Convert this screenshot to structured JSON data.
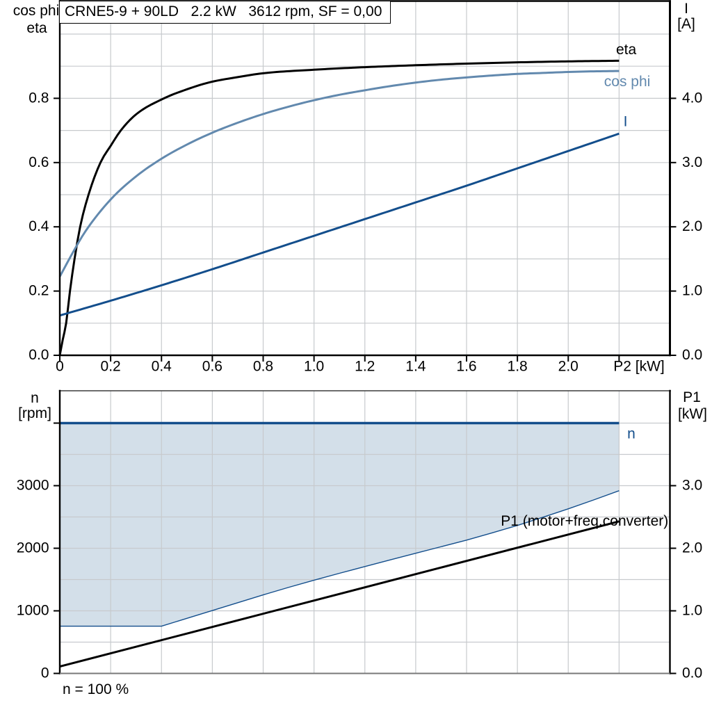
{
  "title_box": {
    "text": "CRNE5-9 + 90LD   2.2 kW   3612 rpm, SF = 0,00"
  },
  "colors": {
    "black": "#000000",
    "navy": "#134E8C",
    "steel": "#6289AE",
    "fill_blue": "#D3DFE9",
    "grid": "#C7CACD",
    "axis_black": "#000000",
    "axis_gray_top": "#3C3C3C",
    "axis_gray_bottom": "#787878",
    "background": "#FFFFFF"
  },
  "chart_data": [
    {
      "type": "line",
      "title": "CRNE5-9 + 90LD   2.2 kW   3612 rpm, SF = 0,00",
      "x_axis": {
        "label": "P2 [kW]",
        "min": 0,
        "max": 2.4,
        "grid": [
          0.2,
          0.4,
          0.6,
          0.8,
          1.0,
          1.2,
          1.4,
          1.6,
          1.8,
          2.0,
          2.2
        ],
        "ticks": [
          0,
          0.2,
          0.4,
          0.6,
          0.8,
          1.0,
          1.2,
          1.4,
          1.6,
          1.8,
          2.0,
          2.2
        ],
        "tick_labels": [
          "0",
          "0.2",
          "0.4",
          "0.6",
          "0.8",
          "1.0",
          "1.2",
          "1.4",
          "1.6",
          "1.8",
          "2.0",
          ""
        ]
      },
      "y_left_axis": {
        "label_lines": [
          "cos phi",
          "eta"
        ],
        "min": 0,
        "max": 1.1,
        "grid": [
          0.1,
          0.2,
          0.3,
          0.4,
          0.5,
          0.6,
          0.7,
          0.8,
          0.9,
          1.0
        ],
        "ticks": [
          0,
          0.2,
          0.4,
          0.6,
          0.8
        ],
        "tick_labels": [
          "0.0",
          "0.2",
          "0.4",
          "0.6",
          "0.8"
        ]
      },
      "y_right_axis": {
        "label_lines": [
          "I",
          "[A]"
        ],
        "min": 0,
        "max": 5.5,
        "ticks": [
          0,
          1,
          2,
          3,
          4
        ],
        "tick_labels": [
          "0.0",
          "1.0",
          "2.0",
          "3.0",
          "4.0"
        ]
      },
      "series": [
        {
          "name": "eta",
          "axis": "left",
          "color": "black",
          "width": 3,
          "curve": "smooth",
          "label": {
            "text": "eta",
            "color": "black",
            "anchor": "middle",
            "at": [
              2.228,
              0.9375
            ]
          },
          "points": [
            [
              0,
              0
            ],
            [
              0.012,
              0.05
            ],
            [
              0.025,
              0.1
            ],
            [
              0.04,
              0.2
            ],
            [
              0.058,
              0.3
            ],
            [
              0.08,
              0.4
            ],
            [
              0.113,
              0.5
            ],
            [
              0.16,
              0.6
            ],
            [
              0.2,
              0.652
            ],
            [
              0.24,
              0.7
            ],
            [
              0.3,
              0.75
            ],
            [
              0.41,
              0.8
            ],
            [
              0.5,
              0.828
            ],
            [
              0.59,
              0.85
            ],
            [
              0.7,
              0.866
            ],
            [
              0.8,
              0.878
            ],
            [
              1.0,
              0.889
            ],
            [
              1.2,
              0.897
            ],
            [
              1.4,
              0.903
            ],
            [
              1.6,
              0.908
            ],
            [
              1.8,
              0.912
            ],
            [
              2.0,
              0.915
            ],
            [
              2.2,
              0.917
            ]
          ]
        },
        {
          "name": "cos phi",
          "axis": "left",
          "color": "steel",
          "width": 3,
          "curve": "smooth",
          "label": {
            "text": "cos phi",
            "color": "steel",
            "anchor": "middle",
            "at": [
              2.232,
              0.838
            ]
          },
          "points": [
            [
              0,
              0.245
            ],
            [
              0.05,
              0.318
            ],
            [
              0.1,
              0.385
            ],
            [
              0.2,
              0.485
            ],
            [
              0.3,
              0.557
            ],
            [
              0.4,
              0.612
            ],
            [
              0.5,
              0.656
            ],
            [
              0.6,
              0.693
            ],
            [
              0.7,
              0.724
            ],
            [
              0.8,
              0.751
            ],
            [
              0.9,
              0.774
            ],
            [
              1.0,
              0.794
            ],
            [
              1.1,
              0.811
            ],
            [
              1.2,
              0.825
            ],
            [
              1.3,
              0.838
            ],
            [
              1.4,
              0.849
            ],
            [
              1.5,
              0.858
            ],
            [
              1.6,
              0.865
            ],
            [
              1.7,
              0.871
            ],
            [
              1.8,
              0.876
            ],
            [
              1.9,
              0.879
            ],
            [
              2.0,
              0.882
            ],
            [
              2.1,
              0.884
            ],
            [
              2.2,
              0.885
            ]
          ]
        },
        {
          "name": "I",
          "axis": "right",
          "color": "navy",
          "width": 3,
          "curve": "smooth",
          "label": {
            "text": "I",
            "color": "navy",
            "anchor": "middle",
            "at": [
              2.225,
              3.568
            ]
          },
          "points": [
            [
              0,
              0.62
            ],
            [
              0.2,
              0.85
            ],
            [
              0.4,
              1.09
            ],
            [
              0.6,
              1.34
            ],
            [
              0.8,
              1.6
            ],
            [
              1.0,
              1.86
            ],
            [
              1.2,
              2.12
            ],
            [
              1.4,
              2.38
            ],
            [
              1.6,
              2.64
            ],
            [
              1.8,
              2.91
            ],
            [
              2.0,
              3.18
            ],
            [
              2.2,
              3.45
            ]
          ]
        }
      ]
    },
    {
      "type": "line",
      "title": "",
      "x_axis": {
        "label": "",
        "min": 0,
        "max": 2.4,
        "grid": [
          0.2,
          0.4,
          0.6,
          0.8,
          1.0,
          1.2,
          1.4,
          1.6,
          1.8,
          2.0,
          2.2
        ],
        "ticks": [],
        "tick_labels": []
      },
      "y_left_axis": {
        "label_lines": [
          "n",
          "[rpm]"
        ],
        "min": 0,
        "max": 4516,
        "grid": [
          500,
          1000,
          1500,
          2000,
          2500,
          3000,
          3500,
          4000
        ],
        "ticks": [
          0,
          1000,
          2000,
          3000,
          4000
        ],
        "tick_labels": [
          "0",
          "1000",
          "2000",
          "3000",
          ""
        ]
      },
      "y_right_axis": {
        "label_lines": [
          "P1",
          "[kW]"
        ],
        "min": 0,
        "max": 4.516,
        "ticks": [
          0,
          1,
          2,
          3
        ],
        "tick_labels": [
          "0.0",
          "1.0",
          "2.0",
          "3.0"
        ]
      },
      "annotation": {
        "text": "n = 100 %"
      },
      "series": [
        {
          "name": "n range",
          "type": "area",
          "axis": "left",
          "fill": "fill_blue",
          "upper": [
            [
              0,
              4000
            ],
            [
              2.2,
              4000
            ]
          ],
          "lower": [
            [
              0,
              755
            ],
            [
              0.4,
              755
            ],
            [
              0.5,
              880
            ],
            [
              0.6,
              1005
            ],
            [
              0.7,
              1130
            ],
            [
              0.8,
              1255
            ],
            [
              0.9,
              1375
            ],
            [
              1.0,
              1490
            ],
            [
              1.1,
              1600
            ],
            [
              1.2,
              1708
            ],
            [
              1.3,
              1815
            ],
            [
              1.4,
              1920
            ],
            [
              1.5,
              2025
            ],
            [
              1.6,
              2130
            ],
            [
              1.7,
              2245
            ],
            [
              1.8,
              2365
            ],
            [
              1.9,
              2495
            ],
            [
              2.0,
              2630
            ],
            [
              2.1,
              2772
            ],
            [
              2.2,
              2920
            ]
          ]
        },
        {
          "name": "n min",
          "axis": "left",
          "color": "navy",
          "width": 1.4,
          "curve": "linear",
          "points": [
            [
              0,
              755
            ],
            [
              0.4,
              755
            ],
            [
              0.5,
              880
            ],
            [
              0.6,
              1005
            ],
            [
              0.7,
              1130
            ],
            [
              0.8,
              1255
            ],
            [
              0.9,
              1375
            ],
            [
              1.0,
              1490
            ],
            [
              1.1,
              1600
            ],
            [
              1.2,
              1708
            ],
            [
              1.3,
              1815
            ],
            [
              1.4,
              1920
            ],
            [
              1.5,
              2025
            ],
            [
              1.6,
              2130
            ],
            [
              1.7,
              2245
            ],
            [
              1.8,
              2365
            ],
            [
              1.9,
              2495
            ],
            [
              2.0,
              2630
            ],
            [
              2.1,
              2772
            ],
            [
              2.2,
              2920
            ]
          ]
        },
        {
          "name": "n",
          "axis": "left",
          "color": "navy",
          "width": 3.6,
          "curve": "linear",
          "label": {
            "text": "n",
            "color": "navy",
            "anchor": "middle",
            "at": [
              2.248,
              3756
            ]
          },
          "points": [
            [
              0,
              4000
            ],
            [
              2.2,
              4000
            ]
          ]
        },
        {
          "name": "P1 (motor+freq.converter)",
          "axis": "right",
          "color": "black",
          "width": 3,
          "curve": "linear",
          "label": {
            "text": "P1 (motor+freq.converter)",
            "color": "black",
            "anchor": "end",
            "at": [
              2.394,
              2.361
            ]
          },
          "points": [
            [
              0,
              0.11
            ],
            [
              0.5,
              0.637
            ],
            [
              1.0,
              1.165
            ],
            [
              1.5,
              1.692
            ],
            [
              2.2,
              2.43
            ]
          ]
        }
      ]
    }
  ]
}
